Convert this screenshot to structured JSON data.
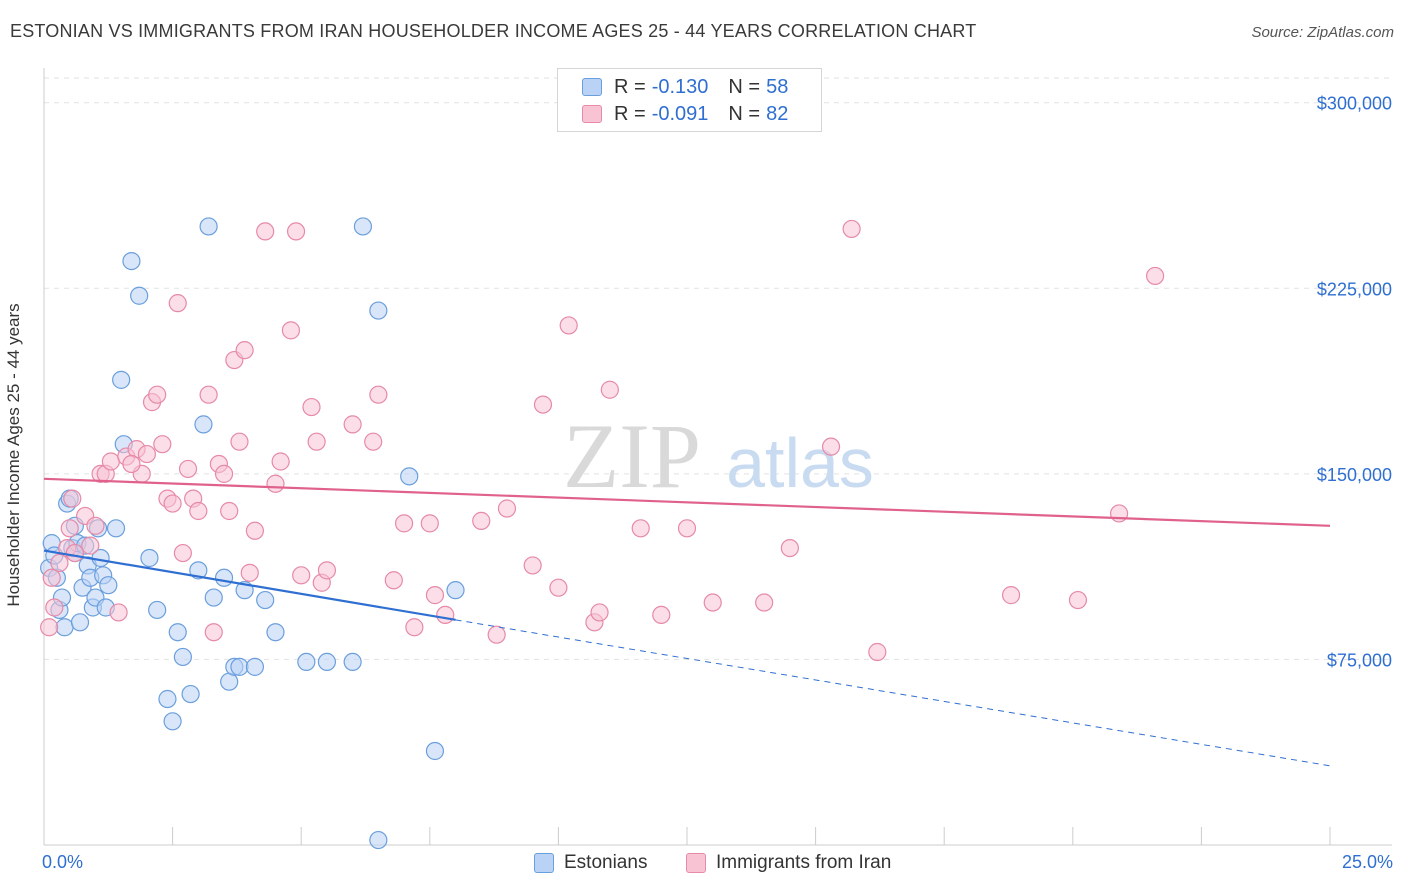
{
  "title": "ESTONIAN VS IMMIGRANTS FROM IRAN HOUSEHOLDER INCOME AGES 25 - 44 YEARS CORRELATION CHART",
  "source": "Source: ZipAtlas.com",
  "watermark": {
    "zip": "ZIP",
    "atlas": "atlas"
  },
  "chart_data": {
    "type": "scatter",
    "ylabel": "Householder Income Ages 25 - 44 years",
    "xlim": [
      0,
      25
    ],
    "ylim": [
      0,
      310000
    ],
    "x_tick_labels": [
      "0.0%",
      "25.0%"
    ],
    "y_ticks": [
      75000,
      150000,
      225000,
      300000
    ],
    "y_tick_labels": [
      "$75,000",
      "$150,000",
      "$225,000",
      "$300,000"
    ],
    "legend_stats": [
      {
        "r_label": "R =",
        "r_value": "-0.130",
        "n_label": "N =",
        "n_value": "58"
      },
      {
        "r_label": "R =",
        "r_value": "-0.091",
        "n_label": "N =",
        "n_value": "82"
      }
    ],
    "series": [
      {
        "name": "Estonians",
        "fill": "#b9d2f5",
        "stroke": "#6b9fdc",
        "line": "#2f6fd1",
        "trend": {
          "x0": 0,
          "y0": 119000,
          "x1": 8.0,
          "y1": 91000,
          "x_end": 25,
          "y_end": 32000
        },
        "points": [
          [
            0.1,
            112000
          ],
          [
            0.15,
            122000
          ],
          [
            0.2,
            117000
          ],
          [
            0.25,
            108000
          ],
          [
            0.3,
            95000
          ],
          [
            0.35,
            100000
          ],
          [
            0.4,
            88000
          ],
          [
            0.45,
            138000
          ],
          [
            0.5,
            140000
          ],
          [
            0.55,
            120000
          ],
          [
            0.6,
            118000
          ],
          [
            0.65,
            122000
          ],
          [
            0.7,
            90000
          ],
          [
            0.75,
            104000
          ],
          [
            0.8,
            121000
          ],
          [
            0.85,
            113000
          ],
          [
            0.9,
            108000
          ],
          [
            0.95,
            96000
          ],
          [
            1.0,
            100000
          ],
          [
            1.05,
            128000
          ],
          [
            1.1,
            116000
          ],
          [
            1.15,
            109000
          ],
          [
            1.2,
            96000
          ],
          [
            1.25,
            105000
          ],
          [
            0.6,
            129000
          ],
          [
            1.4,
            128000
          ],
          [
            1.5,
            188000
          ],
          [
            1.55,
            162000
          ],
          [
            1.7,
            236000
          ],
          [
            1.85,
            222000
          ],
          [
            2.05,
            116000
          ],
          [
            2.2,
            95000
          ],
          [
            2.4,
            59000
          ],
          [
            2.5,
            50000
          ],
          [
            2.6,
            86000
          ],
          [
            2.7,
            76000
          ],
          [
            2.85,
            61000
          ],
          [
            3.0,
            111000
          ],
          [
            3.1,
            170000
          ],
          [
            3.2,
            250000
          ],
          [
            3.3,
            100000
          ],
          [
            3.5,
            108000
          ],
          [
            3.6,
            66000
          ],
          [
            3.7,
            72000
          ],
          [
            3.8,
            72000
          ],
          [
            3.9,
            103000
          ],
          [
            4.1,
            72000
          ],
          [
            4.3,
            99000
          ],
          [
            4.5,
            86000
          ],
          [
            5.1,
            74000
          ],
          [
            5.5,
            74000
          ],
          [
            6.0,
            74000
          ],
          [
            6.2,
            250000
          ],
          [
            6.5,
            216000
          ],
          [
            8.0,
            103000
          ],
          [
            7.6,
            38000
          ],
          [
            7.1,
            149000
          ],
          [
            6.5,
            2000
          ]
        ]
      },
      {
        "name": "Immigrants from Iran",
        "fill": "#f8c3d3",
        "stroke": "#e68aa8",
        "line": "#e0628c",
        "trend": {
          "x0": 0,
          "y0": 148000,
          "x1": 25,
          "y1": 129000
        },
        "points": [
          [
            0.1,
            88000
          ],
          [
            0.15,
            108000
          ],
          [
            0.2,
            96000
          ],
          [
            0.3,
            114000
          ],
          [
            0.45,
            120000
          ],
          [
            0.5,
            128000
          ],
          [
            0.55,
            140000
          ],
          [
            0.6,
            118000
          ],
          [
            0.8,
            133000
          ],
          [
            0.9,
            121000
          ],
          [
            1.0,
            129000
          ],
          [
            1.1,
            150000
          ],
          [
            1.2,
            150000
          ],
          [
            1.3,
            155000
          ],
          [
            1.45,
            94000
          ],
          [
            1.6,
            157000
          ],
          [
            1.8,
            160000
          ],
          [
            1.9,
            150000
          ],
          [
            1.7,
            154000
          ],
          [
            2.0,
            158000
          ],
          [
            2.1,
            179000
          ],
          [
            2.2,
            182000
          ],
          [
            2.3,
            162000
          ],
          [
            2.4,
            140000
          ],
          [
            2.5,
            138000
          ],
          [
            2.6,
            219000
          ],
          [
            2.7,
            118000
          ],
          [
            2.8,
            152000
          ],
          [
            2.9,
            140000
          ],
          [
            3.0,
            135000
          ],
          [
            3.2,
            182000
          ],
          [
            3.3,
            86000
          ],
          [
            3.4,
            154000
          ],
          [
            3.5,
            150000
          ],
          [
            3.6,
            135000
          ],
          [
            3.7,
            196000
          ],
          [
            3.8,
            163000
          ],
          [
            3.9,
            200000
          ],
          [
            4.0,
            110000
          ],
          [
            4.1,
            127000
          ],
          [
            4.3,
            248000
          ],
          [
            4.5,
            146000
          ],
          [
            4.6,
            155000
          ],
          [
            4.8,
            208000
          ],
          [
            4.9,
            248000
          ],
          [
            5.0,
            109000
          ],
          [
            5.2,
            177000
          ],
          [
            5.3,
            163000
          ],
          [
            5.4,
            106000
          ],
          [
            5.5,
            111000
          ],
          [
            6.0,
            170000
          ],
          [
            6.4,
            163000
          ],
          [
            6.5,
            182000
          ],
          [
            6.8,
            107000
          ],
          [
            7.0,
            130000
          ],
          [
            7.2,
            88000
          ],
          [
            7.5,
            130000
          ],
          [
            7.6,
            101000
          ],
          [
            7.8,
            93000
          ],
          [
            8.5,
            131000
          ],
          [
            8.8,
            85000
          ],
          [
            9.0,
            136000
          ],
          [
            9.5,
            113000
          ],
          [
            9.7,
            178000
          ],
          [
            10.0,
            104000
          ],
          [
            10.2,
            210000
          ],
          [
            10.7,
            90000
          ],
          [
            10.8,
            94000
          ],
          [
            11.0,
            184000
          ],
          [
            11.6,
            128000
          ],
          [
            12.0,
            93000
          ],
          [
            12.5,
            128000
          ],
          [
            13.0,
            98000
          ],
          [
            14.0,
            98000
          ],
          [
            14.5,
            120000
          ],
          [
            15.3,
            161000
          ],
          [
            15.7,
            249000
          ],
          [
            16.2,
            78000
          ],
          [
            18.8,
            101000
          ],
          [
            20.1,
            99000
          ],
          [
            20.9,
            134000
          ],
          [
            21.6,
            230000
          ]
        ]
      }
    ]
  }
}
